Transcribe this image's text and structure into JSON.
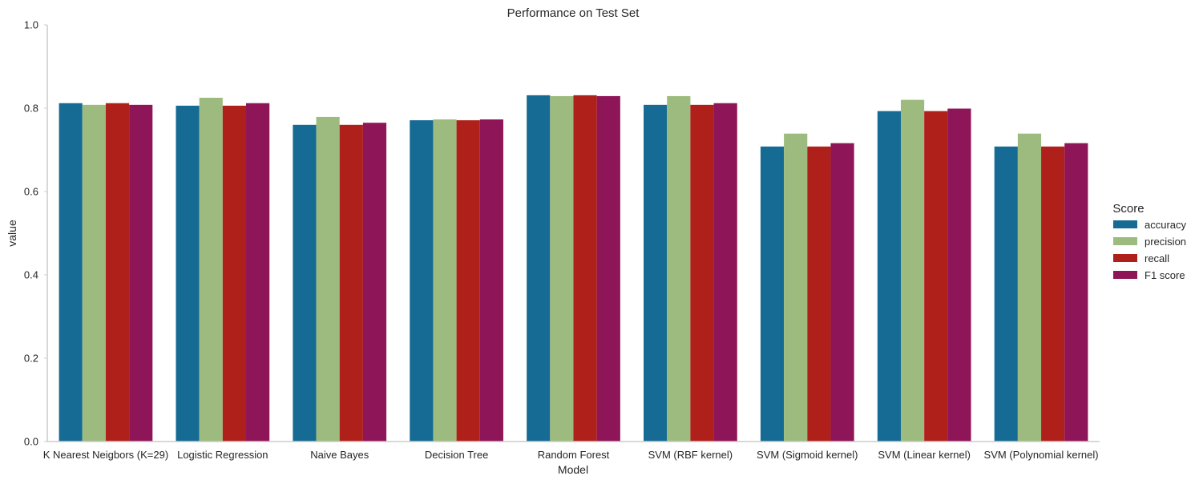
{
  "chart_data": {
    "type": "bar",
    "title": "Performance on Test Set",
    "xlabel": "Model",
    "ylabel": "value",
    "ylim": [
      0,
      1.0
    ],
    "yticks": [
      "0.0",
      "0.2",
      "0.4",
      "0.6",
      "0.8",
      "1.0"
    ],
    "grid": false,
    "legend": {
      "title": "Score",
      "placement": "right"
    },
    "categories": [
      "K Nearest Neigbors (K=29)",
      "Logistic Regression",
      "Naive Bayes",
      "Decision Tree",
      "Random Forest",
      "SVM (RBF kernel)",
      "SVM (Sigmoid kernel)",
      "SVM (Linear kernel)",
      "SVM (Polynomial kernel)"
    ],
    "series": [
      {
        "name": "accuracy",
        "color": "#156B93",
        "values": [
          0.812,
          0.806,
          0.76,
          0.771,
          0.831,
          0.808,
          0.708,
          0.793,
          0.708
        ]
      },
      {
        "name": "precision",
        "color": "#9DBB7E",
        "values": [
          0.808,
          0.825,
          0.779,
          0.773,
          0.829,
          0.829,
          0.739,
          0.82,
          0.739
        ]
      },
      {
        "name": "recall",
        "color": "#B0201B",
        "values": [
          0.812,
          0.806,
          0.76,
          0.771,
          0.831,
          0.808,
          0.708,
          0.793,
          0.708
        ]
      },
      {
        "name": "F1 score",
        "color": "#8E1558",
        "values": [
          0.808,
          0.812,
          0.765,
          0.773,
          0.829,
          0.812,
          0.716,
          0.799,
          0.716
        ]
      }
    ]
  }
}
